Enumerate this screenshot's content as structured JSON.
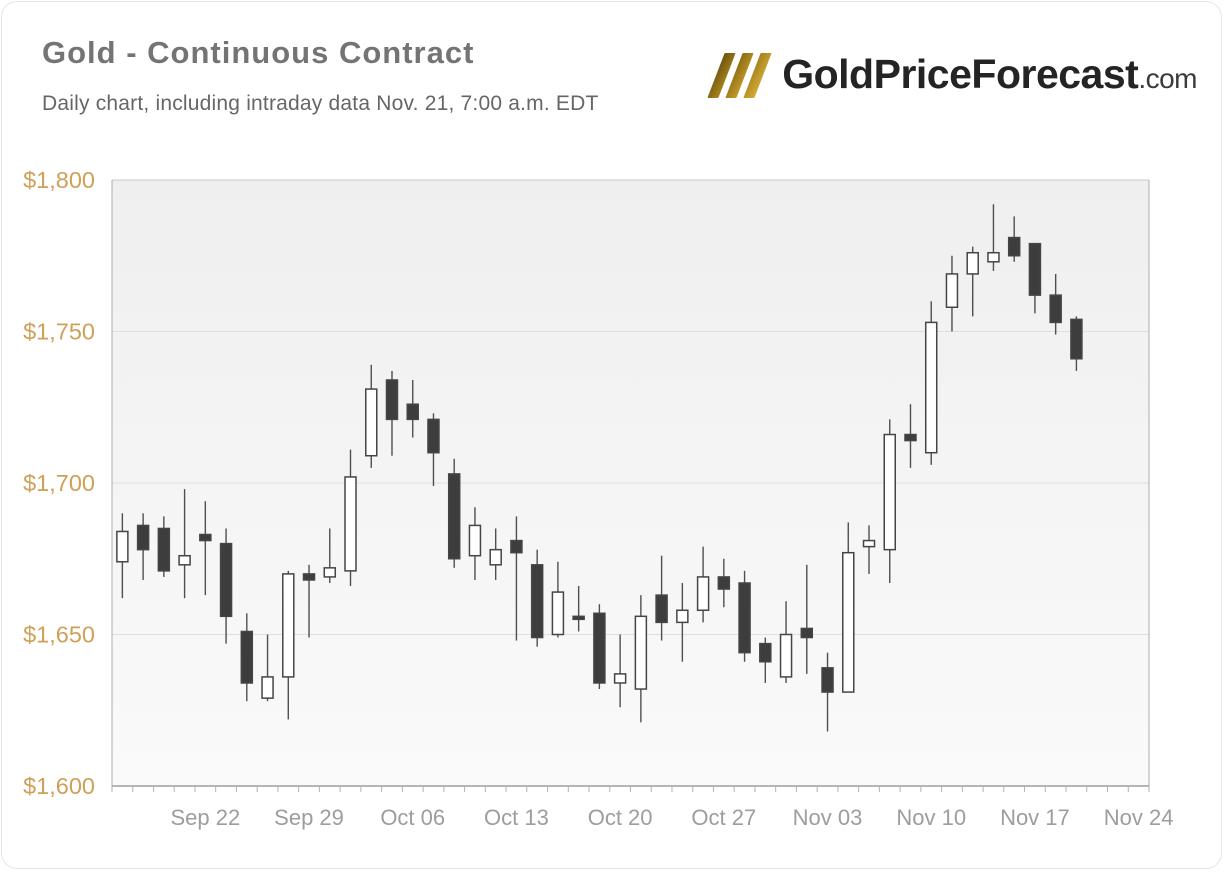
{
  "header": {
    "title": "Gold - Continuous Contract",
    "subtitle": "Daily chart, including intraday data Nov. 21, 7:00 a.m. EDT",
    "logo": {
      "brand": "GoldPriceForecast",
      "tld": ".com",
      "icon": "triple-slash-icon"
    }
  },
  "palette": {
    "title": "#747474",
    "subtitle": "#666666",
    "y_label": "#cfa058",
    "x_label": "#9d9d9d",
    "grid": "#dfdfdf",
    "plot_border_top": "#c8c8c8",
    "plot_border_side": "#aeaeae",
    "axis_line": "#8a8a8a",
    "tick": "#b2b2b2",
    "wick": "#4f4f4f",
    "candle_stroke": "#454545",
    "candle_up_fill": "#ffffff",
    "candle_down_fill": "#3d3d3d",
    "plot_bg_top": "#efefef",
    "plot_bg_bottom": "#fafafa",
    "logo_gold_dark": "#6e530e",
    "logo_gold_light": "#d4ad36"
  },
  "chart_data": {
    "type": "candlestick",
    "title": "Gold - Continuous Contract",
    "xlabel": "",
    "ylabel": "",
    "ylim": [
      1600,
      1800
    ],
    "grid": true,
    "total_slots": 50,
    "y_ticks": [
      {
        "value": 1800,
        "label": "$1,800"
      },
      {
        "value": 1750,
        "label": "$1,750"
      },
      {
        "value": 1700,
        "label": "$1,700"
      },
      {
        "value": 1650,
        "label": "$1,650"
      },
      {
        "value": 1600,
        "label": "$1,600"
      }
    ],
    "x_ticks": [
      {
        "slot": 4,
        "label": "Sep 22"
      },
      {
        "slot": 9,
        "label": "Sep 29"
      },
      {
        "slot": 14,
        "label": "Oct 06"
      },
      {
        "slot": 19,
        "label": "Oct 13"
      },
      {
        "slot": 24,
        "label": "Oct 20"
      },
      {
        "slot": 29,
        "label": "Oct 27"
      },
      {
        "slot": 34,
        "label": "Nov 03"
      },
      {
        "slot": 39,
        "label": "Nov 10"
      },
      {
        "slot": 44,
        "label": "Nov 17"
      },
      {
        "slot": 49,
        "label": "Nov 24"
      }
    ],
    "candles": [
      {
        "date": "Sep 16",
        "open": 1674,
        "high": 1690,
        "low": 1662,
        "close": 1684
      },
      {
        "date": "Sep 19",
        "open": 1686,
        "high": 1690,
        "low": 1668,
        "close": 1678
      },
      {
        "date": "Sep 20",
        "open": 1685,
        "high": 1689,
        "low": 1669,
        "close": 1671
      },
      {
        "date": "Sep 21",
        "open": 1673,
        "high": 1698,
        "low": 1662,
        "close": 1676
      },
      {
        "date": "Sep 22",
        "open": 1683,
        "high": 1694,
        "low": 1663,
        "close": 1681
      },
      {
        "date": "Sep 23",
        "open": 1680,
        "high": 1685,
        "low": 1647,
        "close": 1656
      },
      {
        "date": "Sep 26",
        "open": 1651,
        "high": 1657,
        "low": 1628,
        "close": 1634
      },
      {
        "date": "Sep 27",
        "open": 1629,
        "high": 1650,
        "low": 1628,
        "close": 1636
      },
      {
        "date": "Sep 28",
        "open": 1636,
        "high": 1671,
        "low": 1622,
        "close": 1670
      },
      {
        "date": "Sep 29",
        "open": 1670,
        "high": 1673,
        "low": 1649,
        "close": 1668
      },
      {
        "date": "Sep 30",
        "open": 1669,
        "high": 1685,
        "low": 1667,
        "close": 1672
      },
      {
        "date": "Oct 03",
        "open": 1671,
        "high": 1711,
        "low": 1666,
        "close": 1702
      },
      {
        "date": "Oct 04",
        "open": 1709,
        "high": 1739,
        "low": 1705,
        "close": 1731
      },
      {
        "date": "Oct 05",
        "open": 1734,
        "high": 1737,
        "low": 1709,
        "close": 1721
      },
      {
        "date": "Oct 06",
        "open": 1726,
        "high": 1734,
        "low": 1715,
        "close": 1721
      },
      {
        "date": "Oct 07",
        "open": 1721,
        "high": 1723,
        "low": 1699,
        "close": 1710
      },
      {
        "date": "Oct 10",
        "open": 1703,
        "high": 1708,
        "low": 1672,
        "close": 1675
      },
      {
        "date": "Oct 11",
        "open": 1676,
        "high": 1692,
        "low": 1668,
        "close": 1686
      },
      {
        "date": "Oct 12",
        "open": 1673,
        "high": 1685,
        "low": 1668,
        "close": 1678
      },
      {
        "date": "Oct 13",
        "open": 1681,
        "high": 1689,
        "low": 1648,
        "close": 1677
      },
      {
        "date": "Oct 14",
        "open": 1673,
        "high": 1678,
        "low": 1646,
        "close": 1649
      },
      {
        "date": "Oct 17",
        "open": 1650,
        "high": 1674,
        "low": 1649,
        "close": 1664
      },
      {
        "date": "Oct 18",
        "open": 1656,
        "high": 1666,
        "low": 1651,
        "close": 1655
      },
      {
        "date": "Oct 19",
        "open": 1657,
        "high": 1660,
        "low": 1632,
        "close": 1634
      },
      {
        "date": "Oct 20",
        "open": 1634,
        "high": 1650,
        "low": 1626,
        "close": 1637
      },
      {
        "date": "Oct 21",
        "open": 1632,
        "high": 1663,
        "low": 1621,
        "close": 1656
      },
      {
        "date": "Oct 24",
        "open": 1663,
        "high": 1676,
        "low": 1648,
        "close": 1654
      },
      {
        "date": "Oct 25",
        "open": 1654,
        "high": 1667,
        "low": 1641,
        "close": 1658
      },
      {
        "date": "Oct 26",
        "open": 1658,
        "high": 1679,
        "low": 1654,
        "close": 1669
      },
      {
        "date": "Oct 27",
        "open": 1669,
        "high": 1675,
        "low": 1659,
        "close": 1665
      },
      {
        "date": "Oct 28",
        "open": 1667,
        "high": 1671,
        "low": 1641,
        "close": 1644
      },
      {
        "date": "Oct 31",
        "open": 1647,
        "high": 1649,
        "low": 1634,
        "close": 1641
      },
      {
        "date": "Nov 01",
        "open": 1636,
        "high": 1661,
        "low": 1634,
        "close": 1650
      },
      {
        "date": "Nov 02",
        "open": 1652,
        "high": 1673,
        "low": 1637,
        "close": 1649
      },
      {
        "date": "Nov 03",
        "open": 1639,
        "high": 1644,
        "low": 1618,
        "close": 1631
      },
      {
        "date": "Nov 04",
        "open": 1631,
        "high": 1687,
        "low": 1631,
        "close": 1677
      },
      {
        "date": "Nov 07",
        "open": 1679,
        "high": 1686,
        "low": 1670,
        "close": 1681
      },
      {
        "date": "Nov 08",
        "open": 1678,
        "high": 1721,
        "low": 1667,
        "close": 1716
      },
      {
        "date": "Nov 09",
        "open": 1716,
        "high": 1726,
        "low": 1705,
        "close": 1714
      },
      {
        "date": "Nov 10",
        "open": 1710,
        "high": 1760,
        "low": 1706,
        "close": 1753
      },
      {
        "date": "Nov 11",
        "open": 1758,
        "high": 1775,
        "low": 1750,
        "close": 1769
      },
      {
        "date": "Nov 14",
        "open": 1769,
        "high": 1778,
        "low": 1755,
        "close": 1776
      },
      {
        "date": "Nov 15",
        "open": 1773,
        "high": 1792,
        "low": 1770,
        "close": 1776
      },
      {
        "date": "Nov 16",
        "open": 1781,
        "high": 1788,
        "low": 1773,
        "close": 1775
      },
      {
        "date": "Nov 17",
        "open": 1779,
        "high": 1779,
        "low": 1756,
        "close": 1762
      },
      {
        "date": "Nov 18",
        "open": 1762,
        "high": 1769,
        "low": 1749,
        "close": 1753
      },
      {
        "date": "Nov 21",
        "open": 1754,
        "high": 1755,
        "low": 1737,
        "close": 1741
      }
    ]
  }
}
